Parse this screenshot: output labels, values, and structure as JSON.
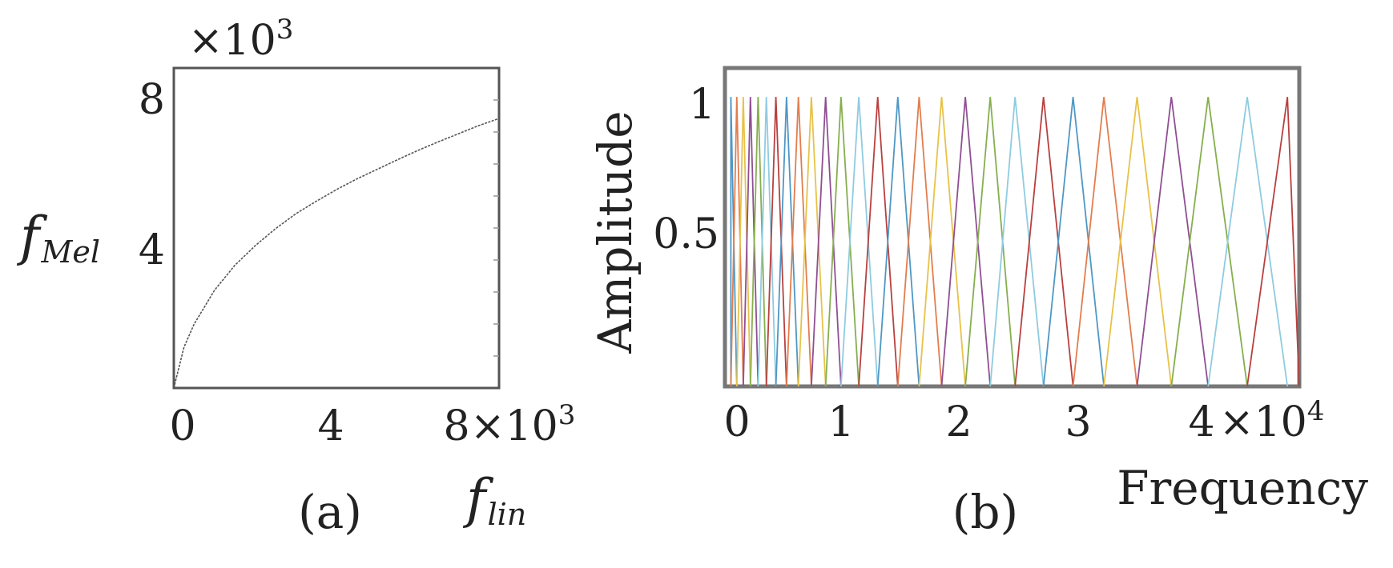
{
  "chart_data": [
    {
      "type": "line",
      "panel_label": "(a)",
      "xlabel": "f",
      "xlabel_sub": "lin",
      "ylabel": "f",
      "ylabel_sub": "Mel",
      "x_ticks": [
        "0",
        "4",
        "8"
      ],
      "x_multiplier": "×10",
      "x_multiplier_exp": "3",
      "y_ticks": [
        "4",
        "8"
      ],
      "y_multiplier": "×10",
      "y_multiplier_exp": "3",
      "xlim": [
        0,
        8000
      ],
      "ylim": [
        0,
        9000
      ],
      "line_color": "#555555",
      "x": [
        0,
        250,
        500,
        1000,
        1500,
        2000,
        2500,
        3000,
        3500,
        4000,
        4500,
        5000,
        5500,
        6000,
        6500,
        7000,
        7500,
        8000
      ],
      "y": [
        0,
        1150,
        1800,
        2750,
        3450,
        4000,
        4480,
        4900,
        5250,
        5580,
        5880,
        6150,
        6420,
        6680,
        6920,
        7150,
        7380,
        7580
      ]
    },
    {
      "type": "line",
      "panel_label": "(b)",
      "xlabel": "Frequency",
      "ylabel": "Amplitude",
      "x_ticks": [
        "0",
        "1",
        "2",
        "3",
        "4"
      ],
      "x_multiplier": "×10",
      "x_multiplier_exp": "4",
      "y_ticks": [
        "0.5",
        "1"
      ],
      "xlim": [
        -500,
        48000
      ],
      "ylim": [
        0,
        1.1
      ],
      "colors": [
        "#4f97c4",
        "#e27d4e",
        "#e7c24a",
        "#8f4f93",
        "#86ae4f",
        "#8fcbe0",
        "#b8403f"
      ],
      "filter_peaks": [
        0,
        500,
        1050,
        1650,
        2300,
        3000,
        3800,
        4700,
        5700,
        6800,
        8000,
        9300,
        10800,
        12400,
        14100,
        15900,
        17800,
        19800,
        21900,
        24000,
        26400,
        28900,
        31500,
        34300,
        37200,
        40300,
        43600,
        47000
      ],
      "amplitude_peak": 1
    }
  ]
}
